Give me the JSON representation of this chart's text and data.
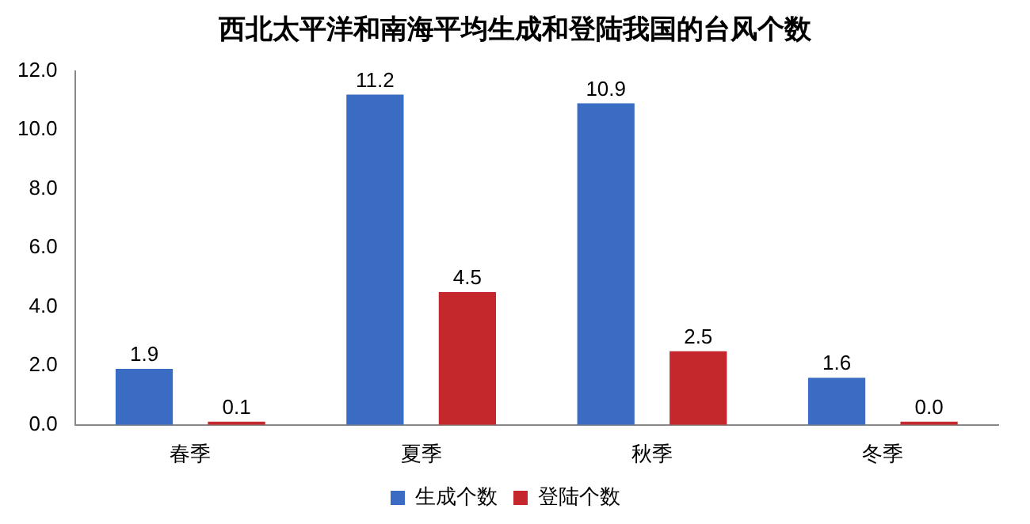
{
  "chart_data": {
    "type": "bar",
    "title": "西北太平洋和南海平均生成和登陆我国的台风个数",
    "categories": [
      "春季",
      "夏季",
      "秋季",
      "冬季"
    ],
    "series": [
      {
        "name": "生成个数",
        "color": "#3b6cc4",
        "values": [
          1.9,
          11.2,
          10.9,
          1.6
        ],
        "value_labels": [
          "1.9",
          "11.2",
          "10.9",
          "1.6"
        ]
      },
      {
        "name": "登陆个数",
        "color": "#c4282c",
        "values": [
          0.1,
          4.5,
          2.5,
          0.0
        ],
        "value_labels": [
          "0.1",
          "4.5",
          "2.5",
          "0.0"
        ]
      }
    ],
    "ylim": [
      0,
      12
    ],
    "yticks": [
      {
        "value": 0,
        "label": "0.0"
      },
      {
        "value": 2,
        "label": "2.0"
      },
      {
        "value": 4,
        "label": "4.0"
      },
      {
        "value": 6,
        "label": "6.0"
      },
      {
        "value": 8,
        "label": "8.0"
      },
      {
        "value": 10,
        "label": "10.0"
      },
      {
        "value": 12,
        "label": "12.0"
      }
    ],
    "grid": false,
    "legend": "bottom"
  }
}
